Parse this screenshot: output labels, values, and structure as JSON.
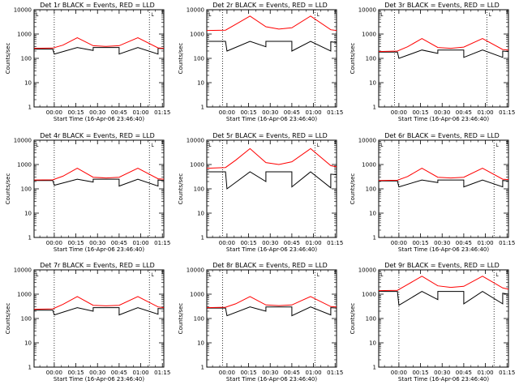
{
  "chart_data": [
    {
      "type": "line",
      "scale": "log",
      "ylim": [
        1,
        10000
      ],
      "title": "Det 1r BLACK = Events, RED = LLD",
      "xlabel": "Start Time (16-Apr-06 23:46:40)",
      "ylabel": "Counts/sec",
      "x_ticks": [
        "00:00",
        "00:15",
        "00:30",
        "00:45",
        "01:00",
        "01:15"
      ],
      "y_ticks": [
        "1",
        "10",
        "100",
        "1000",
        "10000"
      ],
      "vlines_minutes": [
        0,
        66
      ],
      "marker": "└",
      "series": [
        {
          "color": "#000000",
          "points": [
            [
              -14,
              240
            ],
            [
              -1,
              240
            ],
            [
              0,
              150
            ],
            [
              16,
              280
            ],
            [
              27,
              210
            ],
            [
              27,
              280
            ],
            [
              45,
              280
            ],
            [
              45,
              150
            ],
            [
              58,
              280
            ],
            [
              72,
              150
            ],
            [
              72,
              260
            ],
            [
              76,
              250
            ]
          ]
        },
        {
          "color": "#ff0000",
          "points": [
            [
              -14,
              260
            ],
            [
              -1,
              265
            ],
            [
              6,
              350
            ],
            [
              16,
              700
            ],
            [
              27,
              330
            ],
            [
              36,
              310
            ],
            [
              45,
              330
            ],
            [
              58,
              700
            ],
            [
              72,
              270
            ],
            [
              76,
              260
            ]
          ]
        }
      ]
    },
    {
      "type": "line",
      "scale": "log",
      "ylim": [
        1,
        10000
      ],
      "title": "Det 2r BLACK = Events, RED = LLD",
      "xlabel": "Start Time (16-Apr-06 23:46:40)",
      "ylabel": "Counts/sec",
      "x_ticks": [
        "00:00",
        "00:15",
        "00:30",
        "00:45",
        "01:00",
        "01:15"
      ],
      "y_ticks": [
        "1",
        "10",
        "100",
        "1000",
        "10000"
      ],
      "vlines_minutes": [
        -3,
        61
      ],
      "marker": "└",
      "series": [
        {
          "color": "#000000",
          "points": [
            [
              -14,
              500
            ],
            [
              -1,
              500
            ],
            [
              0,
              200
            ],
            [
              16,
              500
            ],
            [
              27,
              300
            ],
            [
              27,
              500
            ],
            [
              45,
              500
            ],
            [
              45,
              200
            ],
            [
              58,
              500
            ],
            [
              72,
              200
            ],
            [
              72,
              480
            ],
            [
              76,
              450
            ]
          ]
        },
        {
          "color": "#ff0000",
          "points": [
            [
              -14,
              1400
            ],
            [
              -1,
              1450
            ],
            [
              6,
              2500
            ],
            [
              16,
              5500
            ],
            [
              27,
              2000
            ],
            [
              36,
              1600
            ],
            [
              45,
              1800
            ],
            [
              58,
              5500
            ],
            [
              72,
              1500
            ],
            [
              76,
              1400
            ]
          ]
        }
      ]
    },
    {
      "type": "line",
      "scale": "log",
      "ylim": [
        1,
        10000
      ],
      "title": "Det 3r BLACK = Events, RED = LLD",
      "xlabel": "Start Time (16-Apr-06 23:46:40)",
      "ylabel": "Counts/sec",
      "x_ticks": [
        "00:00",
        "00:15",
        "00:30",
        "00:45",
        "01:00",
        "01:15"
      ],
      "y_ticks": [
        "1",
        "10",
        "100",
        "1000",
        "10000"
      ],
      "vlines_minutes": [
        -3,
        61
      ],
      "marker": "└",
      "series": [
        {
          "color": "#000000",
          "points": [
            [
              -14,
              180
            ],
            [
              -1,
              180
            ],
            [
              0,
              100
            ],
            [
              16,
              220
            ],
            [
              27,
              160
            ],
            [
              27,
              220
            ],
            [
              45,
              220
            ],
            [
              45,
              110
            ],
            [
              58,
              220
            ],
            [
              72,
              110
            ],
            [
              72,
              200
            ],
            [
              76,
              190
            ]
          ]
        },
        {
          "color": "#ff0000",
          "points": [
            [
              -14,
              190
            ],
            [
              -1,
              200
            ],
            [
              6,
              300
            ],
            [
              16,
              650
            ],
            [
              27,
              280
            ],
            [
              36,
              260
            ],
            [
              45,
              290
            ],
            [
              58,
              650
            ],
            [
              72,
              230
            ],
            [
              76,
              220
            ]
          ]
        }
      ]
    },
    {
      "type": "line",
      "scale": "log",
      "ylim": [
        1,
        10000
      ],
      "title": "Det 4r BLACK = Events, RED = LLD",
      "xlabel": "Start Time (16-Apr-06 23:46:40)",
      "ylabel": "Counts/sec",
      "x_ticks": [
        "00:00",
        "00:15",
        "00:30",
        "00:45",
        "01:00",
        "01:15"
      ],
      "y_ticks": [
        "1",
        "10",
        "100",
        "1000",
        "10000"
      ],
      "vlines_minutes": [
        0,
        66
      ],
      "marker": "└",
      "series": [
        {
          "color": "#000000",
          "points": [
            [
              -14,
              220
            ],
            [
              -1,
              220
            ],
            [
              0,
              140
            ],
            [
              16,
              250
            ],
            [
              27,
              190
            ],
            [
              27,
              250
            ],
            [
              45,
              250
            ],
            [
              45,
              130
            ],
            [
              58,
              250
            ],
            [
              72,
              130
            ],
            [
              72,
              230
            ],
            [
              76,
              220
            ]
          ]
        },
        {
          "color": "#ff0000",
          "points": [
            [
              -14,
              230
            ],
            [
              -1,
              235
            ],
            [
              6,
              330
            ],
            [
              16,
              700
            ],
            [
              27,
              300
            ],
            [
              36,
              280
            ],
            [
              45,
              300
            ],
            [
              58,
              700
            ],
            [
              72,
              260
            ],
            [
              76,
              250
            ]
          ]
        }
      ]
    },
    {
      "type": "line",
      "scale": "log",
      "ylim": [
        1,
        10000
      ],
      "title": "Det 5r BLACK = Events, RED = LLD",
      "xlabel": "Start Time (16-Apr-06 23:46:40)",
      "ylabel": "Counts/sec",
      "x_ticks": [
        "00:00",
        "00:15",
        "00:30",
        "00:45",
        "01:00",
        "01:15"
      ],
      "y_ticks": [
        "1",
        "10",
        "100",
        "1000",
        "10000"
      ],
      "vlines_minutes": [
        -3,
        61
      ],
      "marker": "└",
      "series": [
        {
          "color": "#000000",
          "points": [
            [
              -14,
              500
            ],
            [
              -1,
              500
            ],
            [
              0,
              100
            ],
            [
              16,
              500
            ],
            [
              27,
              200
            ],
            [
              27,
              500
            ],
            [
              45,
              500
            ],
            [
              45,
              120
            ],
            [
              58,
              500
            ],
            [
              72,
              110
            ],
            [
              72,
              400
            ],
            [
              76,
              380
            ]
          ]
        },
        {
          "color": "#ff0000",
          "points": [
            [
              -14,
              700
            ],
            [
              -1,
              750
            ],
            [
              6,
              1500
            ],
            [
              16,
              4500
            ],
            [
              27,
              1200
            ],
            [
              36,
              1000
            ],
            [
              45,
              1300
            ],
            [
              58,
              4500
            ],
            [
              72,
              900
            ],
            [
              76,
              800
            ]
          ]
        }
      ]
    },
    {
      "type": "line",
      "scale": "log",
      "ylim": [
        1,
        10000
      ],
      "title": "Det 6r BLACK = Events, RED = LLD",
      "xlabel": "Start Time (16-Apr-06 23:46:40)",
      "ylabel": "Counts/sec",
      "x_ticks": [
        "00:00",
        "00:15",
        "00:30",
        "00:45",
        "01:00",
        "01:15"
      ],
      "y_ticks": [
        "1",
        "10",
        "100",
        "1000",
        "10000"
      ],
      "vlines_minutes": [
        0,
        66
      ],
      "marker": "└",
      "series": [
        {
          "color": "#000000",
          "points": [
            [
              -14,
              210
            ],
            [
              -1,
              210
            ],
            [
              0,
              120
            ],
            [
              16,
              230
            ],
            [
              27,
              180
            ],
            [
              27,
              230
            ],
            [
              45,
              230
            ],
            [
              45,
              120
            ],
            [
              58,
              230
            ],
            [
              72,
              120
            ],
            [
              72,
              220
            ],
            [
              76,
              210
            ]
          ]
        },
        {
          "color": "#ff0000",
          "points": [
            [
              -14,
              220
            ],
            [
              -1,
              225
            ],
            [
              6,
              320
            ],
            [
              16,
              700
            ],
            [
              27,
              300
            ],
            [
              36,
              280
            ],
            [
              45,
              300
            ],
            [
              58,
              700
            ],
            [
              72,
              250
            ],
            [
              76,
              240
            ]
          ]
        }
      ]
    },
    {
      "type": "line",
      "scale": "log",
      "ylim": [
        1,
        10000
      ],
      "title": "Det 7r BLACK = Events, RED = LLD",
      "xlabel": "Start Time (16-Apr-06 23:46:40)",
      "ylabel": "Counts/sec",
      "x_ticks": [
        "00:00",
        "00:15",
        "00:30",
        "00:45",
        "01:00",
        "01:15"
      ],
      "y_ticks": [
        "1",
        "10",
        "100",
        "1000",
        "10000"
      ],
      "vlines_minutes": [
        0,
        66
      ],
      "marker": "└",
      "series": [
        {
          "color": "#000000",
          "points": [
            [
              -14,
              220
            ],
            [
              -1,
              220
            ],
            [
              0,
              140
            ],
            [
              16,
              280
            ],
            [
              27,
              200
            ],
            [
              27,
              280
            ],
            [
              45,
              280
            ],
            [
              45,
              140
            ],
            [
              58,
              280
            ],
            [
              72,
              150
            ],
            [
              72,
              260
            ],
            [
              76,
              250
            ]
          ]
        },
        {
          "color": "#ff0000",
          "points": [
            [
              -14,
              240
            ],
            [
              -1,
              250
            ],
            [
              6,
              380
            ],
            [
              16,
              800
            ],
            [
              27,
              350
            ],
            [
              36,
              330
            ],
            [
              45,
              350
            ],
            [
              58,
              800
            ],
            [
              72,
              300
            ],
            [
              76,
              280
            ]
          ]
        }
      ]
    },
    {
      "type": "line",
      "scale": "log",
      "ylim": [
        1,
        10000
      ],
      "title": "Det 8r BLACK = Events, RED = LLD",
      "xlabel": "Start Time (16-Apr-06 23:46:40)",
      "ylabel": "Counts/sec",
      "x_ticks": [
        "00:00",
        "00:15",
        "00:30",
        "00:45",
        "01:00",
        "01:15"
      ],
      "y_ticks": [
        "1",
        "10",
        "100",
        "1000",
        "10000"
      ],
      "vlines_minutes": [
        -3,
        61
      ],
      "marker": "└",
      "series": [
        {
          "color": "#000000",
          "points": [
            [
              -14,
              270
            ],
            [
              -1,
              270
            ],
            [
              0,
              130
            ],
            [
              16,
              300
            ],
            [
              27,
              200
            ],
            [
              27,
              300
            ],
            [
              45,
              300
            ],
            [
              45,
              130
            ],
            [
              58,
              300
            ],
            [
              72,
              140
            ],
            [
              72,
              280
            ],
            [
              76,
              270
            ]
          ]
        },
        {
          "color": "#ff0000",
          "points": [
            [
              -14,
              280
            ],
            [
              -1,
              290
            ],
            [
              6,
              400
            ],
            [
              16,
              800
            ],
            [
              27,
              360
            ],
            [
              36,
              340
            ],
            [
              45,
              360
            ],
            [
              58,
              800
            ],
            [
              72,
              310
            ],
            [
              76,
              300
            ]
          ]
        }
      ]
    },
    {
      "type": "line",
      "scale": "log",
      "ylim": [
        1,
        10000
      ],
      "title": "Det 9r BLACK = Events, RED = LLD",
      "xlabel": "Start Time (16-Apr-06 23:46:40)",
      "ylabel": "Counts/sec",
      "x_ticks": [
        "00:00",
        "00:15",
        "00:30",
        "00:45",
        "01:00",
        "01:15"
      ],
      "y_ticks": [
        "1",
        "10",
        "100",
        "1000",
        "10000"
      ],
      "vlines_minutes": [
        0,
        66
      ],
      "marker": "└",
      "series": [
        {
          "color": "#000000",
          "points": [
            [
              -14,
              1300
            ],
            [
              -1,
              1300
            ],
            [
              0,
              350
            ],
            [
              16,
              1300
            ],
            [
              27,
              600
            ],
            [
              27,
              1300
            ],
            [
              45,
              1300
            ],
            [
              45,
              400
            ],
            [
              58,
              1300
            ],
            [
              72,
              400
            ],
            [
              72,
              1100
            ],
            [
              76,
              1000
            ]
          ]
        },
        {
          "color": "#ff0000",
          "points": [
            [
              -14,
              1400
            ],
            [
              -1,
              1450
            ],
            [
              6,
              2500
            ],
            [
              16,
              5500
            ],
            [
              27,
              2200
            ],
            [
              36,
              1900
            ],
            [
              45,
              2100
            ],
            [
              58,
              5500
            ],
            [
              72,
              1800
            ],
            [
              76,
              1600
            ]
          ]
        }
      ]
    }
  ]
}
